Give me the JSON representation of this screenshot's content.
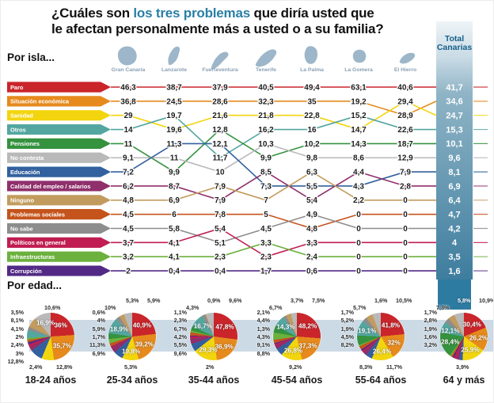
{
  "title": {
    "prefix": "¿Cuáles son ",
    "highlight": "los tres problemas",
    "suffix": " que diría usted que",
    "line2": "le afectan personalmente más a usted o a su familia?"
  },
  "sections": {
    "by_island": "Por isla...",
    "by_age": "Por edad..."
  },
  "accent_colors": {
    "title_highlight": "#2a7fa6",
    "total_band": "#3e7d9e",
    "age_band": "#ccdae5",
    "island_shape": "#9db6c9",
    "island_name": "#8aa0b4"
  },
  "chart_data": [
    {
      "type": "line",
      "subtype": "bump-ranking",
      "section": "Por isla...",
      "unit": "%",
      "categories": [
        {
          "key": "paro",
          "label": "Paro",
          "color": "#c9252b",
          "total": 41.7
        },
        {
          "key": "sitecon",
          "label": "Situación económica",
          "color": "#e68a1d",
          "total": 34.6
        },
        {
          "key": "sanidad",
          "label": "Sanidad",
          "color": "#f2d50f",
          "total": 24.7
        },
        {
          "key": "otros",
          "label": "Otros",
          "color": "#53a7a0",
          "total": 15.3
        },
        {
          "key": "pensiones",
          "label": "Pensiones",
          "color": "#35923f",
          "total": 10.1
        },
        {
          "key": "nocontesta",
          "label": "No contesta",
          "color": "#b9b9b9",
          "total": 9.6
        },
        {
          "key": "educacion",
          "label": "Educación",
          "color": "#33619f",
          "total": 8.1
        },
        {
          "key": "calidad",
          "label": "Calidad del empleo / salarios",
          "color": "#8f2f6b",
          "total": 6.9
        },
        {
          "key": "ninguno",
          "label": "Ninguno",
          "color": "#c29c5e",
          "total": 6.4
        },
        {
          "key": "probsociales",
          "label": "Problemas sociales",
          "color": "#c4541c",
          "total": 4.7
        },
        {
          "key": "nosabe",
          "label": "No sabe",
          "color": "#8d8d8d",
          "total": 4.2
        },
        {
          "key": "politicos",
          "label": "Políticos en general",
          "color": "#c01e52",
          "total": 4
        },
        {
          "key": "infraestructuras",
          "label": "Infraestructuras",
          "color": "#6cb13e",
          "total": 3.5
        },
        {
          "key": "corrupcion",
          "label": "Corrupción",
          "color": "#522a86",
          "total": 1.6
        }
      ],
      "islands": [
        {
          "name": "Gran Canaria",
          "ranked_values": [
            46.3,
            36.8,
            29,
            14,
            11,
            9.1,
            7.2,
            6.2,
            4.8,
            4.5,
            4.5,
            3.7,
            3.2,
            2
          ],
          "category_ranks": [
            0,
            1,
            2,
            3,
            4,
            5,
            6,
            7,
            8,
            9,
            10,
            11,
            12,
            13
          ]
        },
        {
          "name": "Lanzarote",
          "ranked_values": [
            38.7,
            24.5,
            19.7,
            19.6,
            11.3,
            11,
            9.9,
            8.7,
            6.9,
            6,
            5.8,
            4.1,
            4.1,
            0.4
          ],
          "category_ranks": [
            0,
            1,
            3,
            2,
            6,
            5,
            4,
            7,
            8,
            9,
            10,
            11,
            12,
            13
          ]
        },
        {
          "name": "Fuerteventura",
          "ranked_values": [
            37.9,
            28.6,
            21.6,
            12.8,
            12.1,
            11.7,
            10,
            7.9,
            7.9,
            7.8,
            5.4,
            5.1,
            2.3,
            0.4
          ],
          "category_ranks": [
            0,
            1,
            2,
            5,
            3,
            6,
            4,
            8,
            7,
            9,
            11,
            10,
            12,
            13
          ]
        },
        {
          "name": "Tenerife",
          "ranked_values": [
            40.5,
            32.3,
            21.8,
            16.2,
            10.3,
            9.9,
            8.5,
            7.3,
            7,
            5,
            4.5,
            3.3,
            2.3,
            1.7
          ],
          "category_ranks": [
            0,
            1,
            2,
            3,
            5,
            4,
            7,
            6,
            8,
            9,
            10,
            12,
            11,
            13
          ]
        },
        {
          "name": "La Palma",
          "ranked_values": [
            49.4,
            35,
            22.8,
            16,
            10.2,
            9.8,
            6.3,
            5.5,
            5.4,
            4.9,
            4.8,
            3.3,
            2.4,
            0.6
          ],
          "category_ranks": [
            0,
            1,
            2,
            3,
            4,
            5,
            7,
            8,
            6,
            10,
            9,
            11,
            12,
            13
          ]
        },
        {
          "name": "La Gomera",
          "ranked_values": [
            63.1,
            19.2,
            15.2,
            14.7,
            14.3,
            8.6,
            4.4,
            4.3,
            2.2,
            0,
            0,
            0,
            0,
            0
          ],
          "category_ranks": [
            0,
            1,
            3,
            2,
            4,
            5,
            7,
            6,
            8,
            9,
            10,
            11,
            12,
            13
          ]
        },
        {
          "name": "El Hierro",
          "ranked_values": [
            40.6,
            29.4,
            28.9,
            22.6,
            18.7,
            12.9,
            7.9,
            2.8,
            0,
            0,
            0,
            0,
            0,
            0
          ],
          "category_ranks": [
            0,
            2,
            1,
            3,
            4,
            5,
            6,
            7,
            8,
            9,
            10,
            11,
            12,
            13
          ]
        }
      ],
      "total_column": {
        "header_line1": "Total",
        "header_line2": "Canarias",
        "values": [
          41.7,
          34.6,
          24.7,
          15.3,
          10.1,
          9.6,
          8.1,
          6.9,
          6.4,
          4.7,
          4.2,
          4,
          3.5,
          1.6
        ]
      }
    },
    {
      "type": "pie",
      "section": "Por edad...",
      "unit": "%",
      "pies": [
        {
          "name": "18-24 años",
          "slices": [
            {
              "cat": "paro",
              "v": 36,
              "label": "36%"
            },
            {
              "cat": "sitecon",
              "v": 35.7,
              "label": "35,7%"
            },
            {
              "cat": "sanidad",
              "v": 12.8
            },
            {
              "cat": "educacion",
              "v": 12.8
            },
            {
              "cat": "calidad",
              "v": 4.1
            },
            {
              "cat": "politicos",
              "v": 3
            },
            {
              "cat": "corrupcion",
              "v": 2.4
            },
            {
              "cat": "probsociales",
              "v": 2.4
            },
            {
              "cat": "infraestructuras",
              "v": 2
            },
            {
              "cat": "otros",
              "v": 8.1
            },
            {
              "cat": "nosabe",
              "v": 3.5
            },
            {
              "cat": "ninguno",
              "v": 10.6
            },
            {
              "cat": "nocontesta",
              "v": 16.9,
              "label": "16,9%"
            }
          ],
          "labels": {
            "top": [
              "10,6%"
            ],
            "left": [
              "3,5%",
              "8,1%",
              "4,1%",
              "2%",
              "2,4%",
              "3%",
              "12,8%"
            ],
            "bottom": [
              "2,4%",
              "12,8%"
            ]
          }
        },
        {
          "name": "25-34 años",
          "slices": [
            {
              "cat": "paro",
              "v": 40.9,
              "label": "40,9%"
            },
            {
              "cat": "sitecon",
              "v": 39.2,
              "label": "39,2%"
            },
            {
              "cat": "sanidad",
              "v": 19.8,
              "label": "19,8%"
            },
            {
              "cat": "educacion",
              "v": 11.3
            },
            {
              "cat": "calidad",
              "v": 5.9
            },
            {
              "cat": "politicos",
              "v": 1.7
            },
            {
              "cat": "corrupcion",
              "v": 0.6
            },
            {
              "cat": "probsociales",
              "v": 4
            },
            {
              "cat": "infraestructuras",
              "v": 5.3
            },
            {
              "cat": "pensiones",
              "v": 6.9
            },
            {
              "cat": "otros",
              "v": 18.9,
              "label": "18,9%"
            },
            {
              "cat": "nosabe",
              "v": 5.3
            },
            {
              "cat": "ninguno",
              "v": 5.9
            },
            {
              "cat": "nocontesta",
              "v": 10
            }
          ],
          "labels": {
            "top": [
              "10%",
              "5,3%",
              "5,9%"
            ],
            "left": [
              "0,6%",
              "4%",
              "5,9%",
              "1,7%",
              "11,3%",
              "6,9%"
            ],
            "bottom": [
              "5,3%"
            ]
          }
        },
        {
          "name": "35-44 años",
          "slices": [
            {
              "cat": "paro",
              "v": 47.8,
              "label": "47,8%"
            },
            {
              "cat": "sitecon",
              "v": 36.9,
              "label": "36,9%"
            },
            {
              "cat": "sanidad",
              "v": 29.3,
              "label": "29,3%"
            },
            {
              "cat": "educacion",
              "v": 9.6
            },
            {
              "cat": "calidad",
              "v": 6.7
            },
            {
              "cat": "politicos",
              "v": 2.3
            },
            {
              "cat": "corrupcion",
              "v": 1.1
            },
            {
              "cat": "probsociales",
              "v": 4.2
            },
            {
              "cat": "infraestructuras",
              "v": 2
            },
            {
              "cat": "pensiones",
              "v": 5.5
            },
            {
              "cat": "otros",
              "v": 16.7,
              "label": "16,7%"
            },
            {
              "cat": "nosabe",
              "v": 4.3
            },
            {
              "cat": "ninguno",
              "v": 0.9
            },
            {
              "cat": "nocontesta",
              "v": 9.6
            }
          ],
          "labels": {
            "top": [
              "4,3%",
              "0,9%",
              "9,6%"
            ],
            "left": [
              "1,1%",
              "2,3%",
              "6,7%",
              "4,2%",
              "5,5%",
              "9,6%"
            ],
            "bottom": [
              "2%"
            ]
          }
        },
        {
          "name": "45-54 años",
          "slices": [
            {
              "cat": "paro",
              "v": 48.2,
              "label": "48,2%"
            },
            {
              "cat": "sitecon",
              "v": 37.3,
              "label": "37,3%"
            },
            {
              "cat": "sanidad",
              "v": 26.8,
              "label": "26,8%"
            },
            {
              "cat": "educacion",
              "v": 9.2
            },
            {
              "cat": "calidad",
              "v": 4.4
            },
            {
              "cat": "politicos",
              "v": 2.1
            },
            {
              "cat": "corrupcion",
              "v": 1.3
            },
            {
              "cat": "probsociales",
              "v": 4.3
            },
            {
              "cat": "infraestructuras",
              "v": 9.1
            },
            {
              "cat": "pensiones",
              "v": 8.8
            },
            {
              "cat": "otros",
              "v": 14.3,
              "label": "14,3%"
            },
            {
              "cat": "nosabe",
              "v": 3.7
            },
            {
              "cat": "ninguno",
              "v": 6.7
            },
            {
              "cat": "nocontesta",
              "v": 7.5
            }
          ],
          "labels": {
            "top": [
              "6,7%",
              "3,7%",
              "7,5%"
            ],
            "left": [
              "2,1%",
              "4,4%",
              "1,3%",
              "4,3%",
              "9,1%",
              "8,8%"
            ],
            "bottom": [
              "9,2%"
            ]
          }
        },
        {
          "name": "55-64 años",
          "slices": [
            {
              "cat": "paro",
              "v": 41.8,
              "label": "41,8%"
            },
            {
              "cat": "sitecon",
              "v": 32,
              "label": "32%"
            },
            {
              "cat": "sanidad",
              "v": 26.4,
              "label": "26,4%"
            },
            {
              "cat": "educacion",
              "v": 8.3
            },
            {
              "cat": "calidad",
              "v": 5.2
            },
            {
              "cat": "politicos",
              "v": 1.7
            },
            {
              "cat": "corrupcion",
              "v": 1.9
            },
            {
              "cat": "probsociales",
              "v": 4.5
            },
            {
              "cat": "infraestructuras",
              "v": 1.6
            },
            {
              "cat": "pensiones",
              "v": 11.7
            },
            {
              "cat": "otros",
              "v": 19.1,
              "label": "19,1%"
            },
            {
              "cat": "nosabe",
              "v": 5.7
            },
            {
              "cat": "ninguno",
              "v": 8.2
            },
            {
              "cat": "nocontesta",
              "v": 10.5
            }
          ],
          "labels": {
            "top": [
              "5,7%",
              "1,6%",
              "10,5%"
            ],
            "left": [
              "1,7%",
              "5,2%",
              "1,9%",
              "4,5%",
              "8,2%"
            ],
            "bottom": [
              "8,3%",
              "11,7%"
            ]
          }
        },
        {
          "name": "64 y más",
          "slices": [
            {
              "cat": "paro",
              "v": 30.4,
              "label": "30,4%"
            },
            {
              "cat": "sitecon",
              "v": 26.2,
              "label": "26,2%"
            },
            {
              "cat": "sanidad",
              "v": 25.9,
              "label": "25,9%"
            },
            {
              "cat": "educacion",
              "v": 3.9
            },
            {
              "cat": "calidad",
              "v": 3.2
            },
            {
              "cat": "politicos",
              "v": 2.8
            },
            {
              "cat": "corrupcion",
              "v": 1.7
            },
            {
              "cat": "probsociales",
              "v": 1.9
            },
            {
              "cat": "infraestructuras",
              "v": 1.6
            },
            {
              "cat": "pensiones",
              "v": 28.4,
              "label": "28,4%"
            },
            {
              "cat": "otros",
              "v": 12.1,
              "label": "12,1%"
            },
            {
              "cat": "nosabe",
              "v": 5.8
            },
            {
              "cat": "ninguno",
              "v": 7.3
            },
            {
              "cat": "nocontesta",
              "v": 10.9
            }
          ],
          "labels": {
            "top": [
              "7,3%",
              "5,8%",
              "10,9%"
            ],
            "left": [
              "1,7%",
              "2,8%",
              "1,9%",
              "1,6%",
              "3,2%"
            ],
            "bottom": [
              "3,9%"
            ],
            "top_on_band_index": 1
          }
        }
      ]
    }
  ]
}
